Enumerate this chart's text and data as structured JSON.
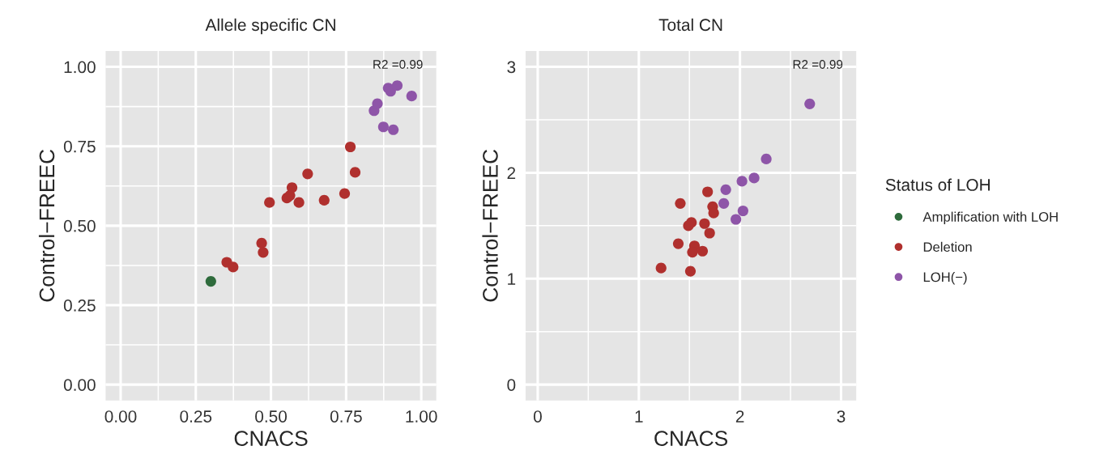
{
  "chart_data": [
    {
      "type": "scatter",
      "title": "Allele specific CN",
      "xlabel": "CNACS",
      "ylabel": "Control−FREEC",
      "annotations": [
        "R2 =0.99"
      ],
      "xlim": [
        -0.05,
        1.05
      ],
      "ylim": [
        -0.05,
        1.05
      ],
      "xticks": [
        {
          "value": 0,
          "label": "0.00"
        },
        {
          "value": 0.25,
          "label": "0.25"
        },
        {
          "value": 0.5,
          "label": "0.50"
        },
        {
          "value": 0.75,
          "label": "0.75"
        },
        {
          "value": 1,
          "label": "1.00"
        }
      ],
      "yticks": [
        {
          "value": 0,
          "label": "0.00"
        },
        {
          "value": 0.25,
          "label": "0.25"
        },
        {
          "value": 0.5,
          "label": "0.50"
        },
        {
          "value": 0.75,
          "label": "0.75"
        },
        {
          "value": 1,
          "label": "1.00"
        }
      ],
      "grid": true,
      "marker": "circle",
      "legend": "right",
      "legend_title": "Status of LOH",
      "series": [
        {
          "name": "Amplification with LOH",
          "color": "#2e6b3c",
          "x": [
            0.3
          ],
          "values": [
            0.325
          ]
        },
        {
          "name": "Deletion",
          "color": "#b0302e",
          "x": [
            0.353,
            0.374,
            0.469,
            0.474,
            0.495,
            0.553,
            0.563,
            0.57,
            0.593,
            0.622,
            0.677,
            0.745,
            0.764,
            0.78
          ],
          "values": [
            0.385,
            0.37,
            0.445,
            0.416,
            0.573,
            0.587,
            0.595,
            0.62,
            0.573,
            0.663,
            0.58,
            0.601,
            0.748,
            0.668
          ]
        },
        {
          "name": "LOH(−)",
          "color": "#8e55a8",
          "x": [
            0.843,
            0.854,
            0.874,
            0.89,
            0.898,
            0.92,
            0.907,
            0.968
          ],
          "values": [
            0.862,
            0.884,
            0.811,
            0.933,
            0.923,
            0.941,
            0.802,
            0.908
          ]
        }
      ]
    },
    {
      "type": "scatter",
      "title": "Total CN",
      "xlabel": "CNACS",
      "ylabel": "Control−FREEC",
      "annotations": [
        "R2 =0.99"
      ],
      "xlim": [
        -0.12,
        3.15
      ],
      "ylim": [
        -0.15,
        3.15
      ],
      "xticks": [
        0,
        1,
        2,
        3
      ],
      "yticks": [
        0,
        1,
        2,
        3
      ],
      "grid": true,
      "marker": "circle",
      "series": [
        {
          "color": "#b0302e",
          "x": [
            1.41,
            1.68,
            1.73,
            1.74,
            1.52,
            1.49,
            1.65,
            1.7,
            1.39,
            1.55,
            1.53,
            1.63,
            1.22,
            1.51
          ],
          "values": [
            1.71,
            1.82,
            1.68,
            1.62,
            1.53,
            1.5,
            1.52,
            1.43,
            1.33,
            1.31,
            1.25,
            1.26,
            1.1,
            1.07
          ]
        },
        {
          "color": "#8e55a8",
          "x": [
            2.69,
            2.26,
            2.14,
            2.02,
            1.86,
            1.84,
            2.03,
            1.96
          ],
          "values": [
            2.65,
            2.13,
            1.95,
            1.92,
            1.84,
            1.71,
            1.64,
            1.56
          ]
        }
      ]
    }
  ]
}
